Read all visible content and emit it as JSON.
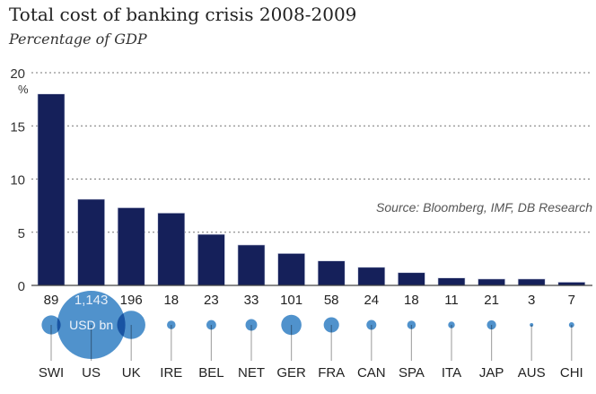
{
  "chart_data": {
    "type": "bar",
    "title": "Total cost of banking crisis 2008-2009",
    "subtitle": "Percentage of GDP",
    "ylabel": "%",
    "xlabel": "",
    "ylim": [
      0,
      20
    ],
    "yticks": [
      0,
      5,
      10,
      15,
      20
    ],
    "grid": true,
    "source": "Source: Bloomberg, IMF, DB Research",
    "categories": [
      "SWI",
      "US",
      "UK",
      "IRE",
      "BEL",
      "NET",
      "GER",
      "FRA",
      "CAN",
      "SPA",
      "ITA",
      "JAP",
      "AUS",
      "CHI"
    ],
    "values": [
      18.0,
      8.1,
      7.3,
      6.8,
      4.8,
      3.8,
      3.0,
      2.3,
      1.7,
      1.2,
      0.7,
      0.6,
      0.6,
      0.3
    ],
    "bubble_series": {
      "name": "USD bn",
      "values": [
        89,
        1143,
        196,
        18,
        23,
        33,
        101,
        58,
        24,
        18,
        11,
        21,
        3,
        7
      ],
      "labels": [
        "89",
        "1,143",
        "196",
        "18",
        "23",
        "33",
        "101",
        "58",
        "24",
        "18",
        "11",
        "21",
        "3",
        "7"
      ]
    },
    "colors": {
      "bar": "#15205a",
      "bubble": "#3d86c6",
      "grid": "#777777"
    }
  }
}
